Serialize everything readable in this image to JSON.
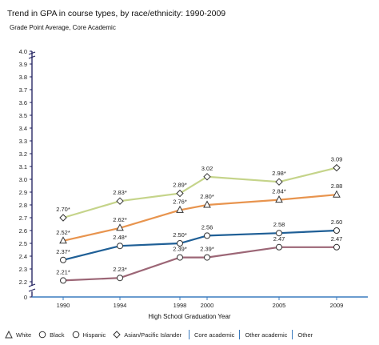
{
  "title": "Trend in GPA in course types, by race/ethnicity: 1990-2009",
  "legend": {
    "white": "White",
    "black": "Black",
    "hispanic": "Hispanic",
    "asian": "Asian/Pacific Islander",
    "core_academic": "Core academic",
    "other_academic": "Other academic",
    "other": "Other"
  },
  "colors": {
    "asian": "#c5d48a",
    "white": "#e8944e",
    "black": "#1f5f96",
    "hispanic": "#9c6676",
    "axis": "#1a1a5a",
    "xaxis": "#3a7bbf"
  },
  "chart_data": {
    "type": "line",
    "title": "Trend in GPA in course types, by race/ethnicity: 1990-2009",
    "xlabel": "High School Graduation Year",
    "ylabel": "Grade Point Average, Core Academic",
    "x": [
      1990,
      1994,
      1998,
      2000,
      2005,
      2009
    ],
    "yticks": [
      "4.0",
      "3.9",
      "3.8",
      "3.7",
      "3.6",
      "3.5",
      "3.4",
      "3.3",
      "3.2",
      "3.1",
      "3.0",
      "2.9",
      "2.8",
      "2.7",
      "2.6",
      "2.5",
      "2.4",
      "2.3",
      "2.2",
      "0"
    ],
    "ylim": [
      2.2,
      4.0
    ],
    "axis_break": true,
    "series": [
      {
        "key": "asian",
        "marker": "diamond",
        "values": [
          2.7,
          2.83,
          2.89,
          3.02,
          2.98,
          3.09
        ],
        "labels": [
          "2.70*",
          "2.83*",
          "2.89*",
          "3.02",
          "2.98*",
          "3.09"
        ]
      },
      {
        "key": "white",
        "marker": "triangle",
        "values": [
          2.52,
          2.62,
          2.76,
          2.8,
          2.84,
          2.88
        ],
        "labels": [
          "2.52*",
          "2.62*",
          "2.76*",
          "2.80*",
          "2.84*",
          "2.88"
        ]
      },
      {
        "key": "black",
        "marker": "circle",
        "values": [
          2.37,
          2.48,
          2.5,
          2.56,
          2.58,
          2.6
        ],
        "labels": [
          "2.37*",
          "2.48*",
          "2.50*",
          "2.56",
          "2.58",
          "2.60"
        ]
      },
      {
        "key": "hispanic",
        "marker": "circle",
        "values": [
          2.21,
          2.23,
          2.39,
          2.39,
          2.47,
          2.47
        ],
        "labels": [
          "2.21*",
          "2.23*",
          "2.39*",
          "2.39*",
          "2.47",
          "2.47"
        ]
      }
    ]
  }
}
